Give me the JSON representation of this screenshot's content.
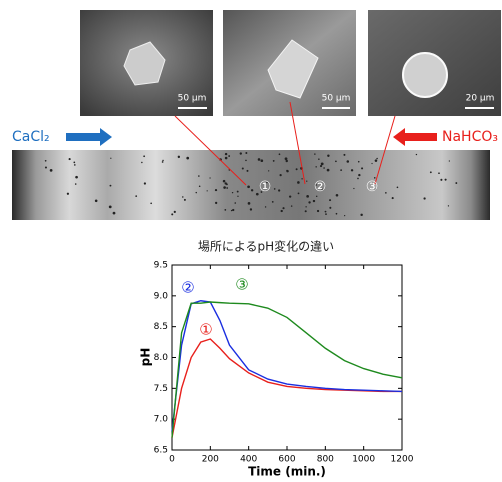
{
  "figure": {
    "left_label": "CaCl₂",
    "right_label": "NaHCO₃",
    "micrographs": [
      {
        "scale": "50 μm"
      },
      {
        "scale": "50 μm"
      },
      {
        "scale": "20 μm"
      }
    ],
    "positions": [
      "①",
      "②",
      "③"
    ]
  },
  "chart_data": {
    "type": "line",
    "title": "場所によるpH変化の違い",
    "x_label": "Time (min.)",
    "y_label": "pH",
    "x": [
      0,
      50,
      100,
      150,
      200,
      250,
      300,
      400,
      500,
      600,
      700,
      800,
      900,
      1000,
      1100,
      1200
    ],
    "series": [
      {
        "name": "①",
        "color": "#e8201c",
        "values": [
          6.7,
          7.5,
          8.0,
          8.25,
          8.3,
          8.15,
          7.98,
          7.75,
          7.6,
          7.53,
          7.5,
          7.48,
          7.47,
          7.46,
          7.45,
          7.45
        ]
      },
      {
        "name": "②",
        "color": "#1a2ee0",
        "values": [
          6.8,
          8.2,
          8.87,
          8.92,
          8.9,
          8.6,
          8.2,
          7.8,
          7.65,
          7.57,
          7.53,
          7.5,
          7.48,
          7.47,
          7.46,
          7.45
        ]
      },
      {
        "name": "③",
        "color": "#1e8a1e",
        "values": [
          6.7,
          8.4,
          8.88,
          8.88,
          8.9,
          8.89,
          8.88,
          8.87,
          8.8,
          8.65,
          8.4,
          8.15,
          7.95,
          7.82,
          7.73,
          7.67
        ]
      }
    ],
    "xlim": [
      0,
      1200
    ],
    "xticks": [
      0,
      200,
      400,
      600,
      800,
      1000,
      1200
    ],
    "ylim": [
      6.5,
      9.5
    ],
    "yticks": [
      6.5,
      {
        "value": 7,
        "label": "7.0"
      },
      7.5,
      {
        "value": 8,
        "label": "8.0"
      },
      8.5,
      {
        "value": 9,
        "label": "9.0"
      },
      9.5
    ],
    "grid": false
  }
}
